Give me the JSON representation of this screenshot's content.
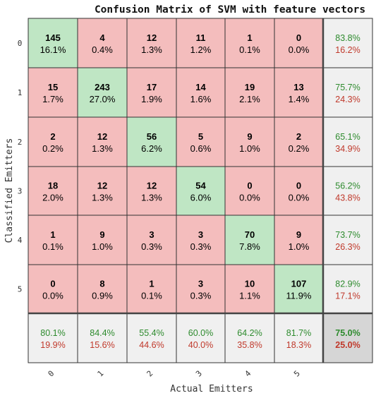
{
  "chart_data": {
    "type": "heatmap",
    "title": "Confusion Matrix of SVM with feature vectors",
    "xlabel": "Actual Emitters",
    "ylabel": "Classified Emitters",
    "x_ticks": [
      "0",
      "1",
      "2",
      "3",
      "4",
      "5"
    ],
    "y_ticks": [
      "0",
      "1",
      "2",
      "3",
      "4",
      "5"
    ],
    "counts": [
      [
        145,
        4,
        12,
        11,
        1,
        0
      ],
      [
        15,
        243,
        17,
        14,
        19,
        13
      ],
      [
        2,
        12,
        56,
        5,
        9,
        2
      ],
      [
        18,
        12,
        12,
        54,
        0,
        0
      ],
      [
        1,
        9,
        3,
        3,
        70,
        9
      ],
      [
        0,
        8,
        1,
        3,
        10,
        107
      ]
    ],
    "percents": [
      [
        "16.1%",
        "0.4%",
        "1.3%",
        "1.2%",
        "0.1%",
        "0.0%"
      ],
      [
        "1.7%",
        "27.0%",
        "1.9%",
        "1.6%",
        "2.1%",
        "1.4%"
      ],
      [
        "0.2%",
        "1.3%",
        "6.2%",
        "0.6%",
        "1.0%",
        "0.2%"
      ],
      [
        "2.0%",
        "1.3%",
        "1.3%",
        "6.0%",
        "0.0%",
        "0.0%"
      ],
      [
        "0.1%",
        "1.0%",
        "0.3%",
        "0.3%",
        "7.8%",
        "1.0%"
      ],
      [
        "0.0%",
        "0.9%",
        "0.1%",
        "0.3%",
        "1.1%",
        "11.9%"
      ]
    ],
    "row_summary": [
      [
        "83.8%",
        "16.2%"
      ],
      [
        "75.7%",
        "24.3%"
      ],
      [
        "65.1%",
        "34.9%"
      ],
      [
        "56.2%",
        "43.8%"
      ],
      [
        "73.7%",
        "26.3%"
      ],
      [
        "82.9%",
        "17.1%"
      ]
    ],
    "col_summary": [
      [
        "80.1%",
        "19.9%"
      ],
      [
        "84.4%",
        "15.6%"
      ],
      [
        "55.4%",
        "44.6%"
      ],
      [
        "60.0%",
        "40.0%"
      ],
      [
        "64.2%",
        "35.8%"
      ],
      [
        "81.7%",
        "18.3%"
      ]
    ],
    "overall": [
      "75.0%",
      "25.0%"
    ],
    "colors": {
      "correct": "#bfe6c4",
      "incorrect": "#f4bdbd",
      "summary": "#f0f0f0",
      "overall": "#d6d6d6",
      "green_text": "#2e8b2e",
      "red_text": "#c0392b"
    }
  }
}
